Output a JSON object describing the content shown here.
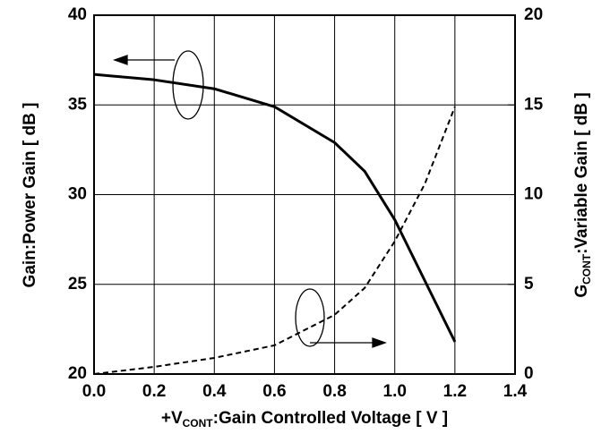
{
  "chart_data": {
    "type": "line",
    "x_label": {
      "prefix": "+V",
      "sub": "CONT",
      "suffix": ":Gain Controlled Voltage [ V ]"
    },
    "y_label": "Gain:Power Gain [ dB ]",
    "y2_label": {
      "prefix": "G",
      "sub": "CONT",
      "suffix": ":Variable Gain [ dB ]"
    },
    "x": [
      0,
      0.2,
      0.4,
      0.6,
      0.8,
      0.9,
      1.0,
      1.1,
      1.2
    ],
    "series": [
      {
        "color": "#000000",
        "dash": false,
        "values": [
          36.7,
          36.4,
          35.9,
          34.9,
          32.9,
          31.3,
          28.6,
          25.2,
          21.8
        ]
      },
      {
        "color": "#000000",
        "dash": true,
        "axis": "y2",
        "values": [
          0,
          0.4,
          0.9,
          1.6,
          3.3,
          4.8,
          7.4,
          10.6,
          14.9
        ]
      }
    ],
    "xlim": [
      0,
      1.4
    ],
    "xticks": [
      {
        "value": 0,
        "label": "0.0"
      },
      {
        "value": 0.2,
        "label": "0.2"
      },
      {
        "value": 0.4,
        "label": "0.4"
      },
      {
        "value": 0.6,
        "label": "0.6"
      },
      {
        "value": 0.8,
        "label": "0.8"
      },
      {
        "value": 1.0,
        "label": "1.0"
      },
      {
        "value": 1.2,
        "label": "1.2"
      },
      {
        "value": 1.4,
        "label": "1.4"
      }
    ],
    "ylim": [
      20,
      40
    ],
    "yticks": [
      20,
      25,
      30,
      35,
      40
    ],
    "y2lim": [
      0,
      20
    ],
    "y2ticks": [
      0,
      5,
      10,
      15,
      20
    ],
    "grid": true
  }
}
